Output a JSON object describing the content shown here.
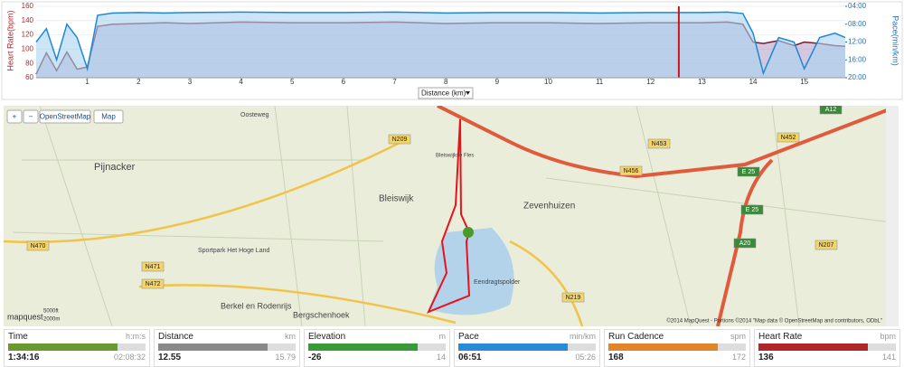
{
  "chart_data": {
    "type": "line",
    "y_label": "Heart Rate(bpm)",
    "y2_label": "Pace(min/km)",
    "x_selector": "Distance (km)",
    "x": [
      0,
      0.2,
      0.4,
      0.6,
      0.8,
      1.0,
      1.2,
      1.5,
      2,
      2.5,
      3,
      4,
      5,
      6,
      7,
      8,
      9,
      10,
      11,
      12,
      13,
      13.5,
      13.8,
      14,
      14.2,
      14.5,
      14.8,
      15,
      15.3,
      15.6,
      15.8
    ],
    "series": [
      {
        "name": "Heart Rate",
        "color": "#7a1a2a",
        "fill": "#b7a3c9",
        "values": [
          65,
          95,
          70,
          96,
          72,
          75,
          132,
          135,
          136,
          137,
          136,
          138,
          137,
          137,
          138,
          136,
          137,
          137,
          136,
          137,
          137,
          138,
          135,
          110,
          108,
          112,
          105,
          110,
          108,
          105,
          104
        ]
      },
      {
        "name": "Pace",
        "color": "#1e88d8",
        "fill": "#a9d4f2",
        "axis": "y2",
        "values": [
          12,
          9,
          16,
          8,
          11,
          18,
          6,
          5.5,
          5.4,
          5.5,
          5.4,
          5.3,
          5.4,
          5.4,
          5.3,
          5.5,
          5.4,
          5.4,
          5.5,
          5.4,
          5.4,
          5.3,
          5.6,
          10,
          19,
          11,
          12,
          18,
          11,
          10,
          11
        ]
      }
    ],
    "xlim": [
      0,
      15.8
    ],
    "xticks": [
      1,
      2,
      3,
      4,
      5,
      6,
      7,
      8,
      9,
      10,
      11,
      12,
      13,
      14,
      15
    ],
    "ylim": [
      60,
      160
    ],
    "yticks": [
      60,
      80,
      100,
      120,
      140,
      160
    ],
    "y2lim": [
      20,
      4
    ],
    "y2ticks": [
      {
        "value": 4,
        "label": "04:00"
      },
      {
        "value": 8,
        "label": "08:00"
      },
      {
        "value": 12,
        "label": "12:00"
      },
      {
        "value": 16,
        "label": "16:00"
      },
      {
        "value": 20,
        "label": "20:00"
      }
    ],
    "cursor_color": "#d0121b"
  },
  "map": {
    "controls": [
      "+",
      "−",
      "OpenStreetMap",
      "Map"
    ],
    "labels": [
      "Pijnacker",
      "Bleiswijk",
      "Zevenhuizen",
      "Berkel en Rodenrijs",
      "Bergschenhoek",
      "Sportpark Het Hoge Land",
      "Eendragtspolder",
      "Oosteweg",
      "Bleiswijkse Fles"
    ],
    "roads": [
      "N209",
      "N470",
      "N471",
      "N472",
      "N453",
      "N456",
      "N452",
      "N219",
      "N207",
      "A20",
      "A12",
      "E 25",
      "E 25"
    ],
    "logo": "mapquest",
    "scale": [
      "5000ft",
      "2000m"
    ],
    "attribution": "©2014 MapQuest - Portions ©2014 \"Map data © OpenStreetMap and contributors, ODbL\""
  },
  "stats": [
    {
      "label": "Time",
      "unit": "h:m:s",
      "value": "1:34:16",
      "max": "02:08:32",
      "color": "#6a9a2e"
    },
    {
      "label": "Distance",
      "unit": "km",
      "value": 12.55,
      "max": 15.79,
      "color": "#8a8a8a"
    },
    {
      "label": "Elevation",
      "unit": "m",
      "value": -26,
      "max": 14,
      "color": "#3a9a3a"
    },
    {
      "label": "Pace",
      "unit": "min/km",
      "value": "06:51",
      "max": "05:26",
      "color": "#2a8ad8"
    },
    {
      "label": "Run Cadence",
      "unit": "spm",
      "value": 168,
      "max": 172,
      "color": "#e0852a"
    },
    {
      "label": "Heart Rate",
      "unit": "bpm",
      "value": 136,
      "max": 141,
      "color": "#b0262c"
    }
  ]
}
